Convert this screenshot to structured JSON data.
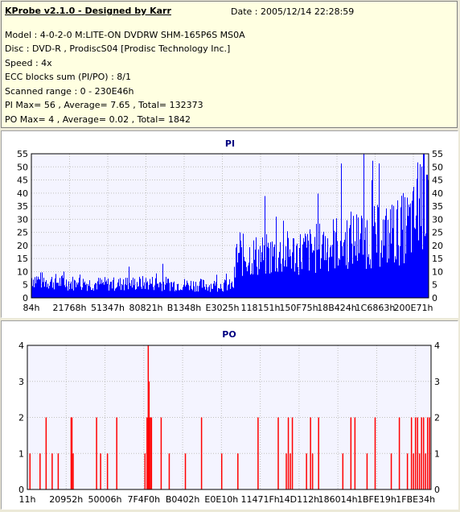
{
  "header": {
    "title": "KProbe v2.1.0 - Designed by Karr",
    "date": "Date : 2005/12/14 22:28:59",
    "lines": [
      "Model : 4-0-2-0 M:LITE-ON DVDRW SHM-165P6S MS0A",
      "Disc : DVD-R , ProdiscS04   [Prodisc Technology Inc.]",
      "Speed : 4x",
      "ECC blocks sum (PI/PO) : 8/1",
      "Scanned range : 0 - 230E46h",
      "PI Max= 56 , Average= 7.65 , Total= 132373",
      "PO Max= 4 , Average= 0.02 , Total= 1842"
    ]
  },
  "colors": {
    "pi_bar": "#0000ff",
    "po_bar": "#ff0000",
    "grid": "#c0c0c0",
    "plot_bg": "#f4f4ff",
    "header_bg": "#ffffe1",
    "chart_title": "#000080"
  },
  "chart_data": [
    {
      "type": "bar",
      "title": "PI",
      "xlabel": "",
      "ylabel": "",
      "ylim": [
        0,
        55
      ],
      "yticks": [
        0,
        5,
        10,
        15,
        20,
        25,
        30,
        35,
        40,
        45,
        50,
        55
      ],
      "x_tick_labels": [
        "84h",
        "21768h",
        "51347h",
        "80821h",
        "B1348h",
        "E3025h",
        "118151h",
        "150F75h",
        "18B424h",
        "1C6863h",
        "200E71h"
      ],
      "grid": true,
      "profile": [
        {
          "x": 0.0,
          "y": 8
        },
        {
          "x": 0.02,
          "y": 7
        },
        {
          "x": 0.1,
          "y": 6
        },
        {
          "x": 0.2,
          "y": 5.5
        },
        {
          "x": 0.3,
          "y": 6
        },
        {
          "x": 0.36,
          "y": 5.5
        },
        {
          "x": 0.45,
          "y": 5
        },
        {
          "x": 0.51,
          "y": 5
        },
        {
          "x": 0.515,
          "y": 17
        },
        {
          "x": 0.6,
          "y": 17
        },
        {
          "x": 0.7,
          "y": 19
        },
        {
          "x": 0.76,
          "y": 22
        },
        {
          "x": 0.82,
          "y": 24
        },
        {
          "x": 0.9,
          "y": 25
        },
        {
          "x": 0.96,
          "y": 30
        },
        {
          "x": 0.985,
          "y": 40
        },
        {
          "x": 1.0,
          "y": 47
        }
      ],
      "spikes": [
        {
          "x": 0.33,
          "y": 13
        },
        {
          "x": 0.525,
          "y": 25
        },
        {
          "x": 0.72,
          "y": 29
        },
        {
          "x": 0.78,
          "y": 30
        },
        {
          "x": 0.93,
          "y": 32
        },
        {
          "x": 0.978,
          "y": 51
        },
        {
          "x": 0.986,
          "y": 56
        },
        {
          "x": 0.995,
          "y": 47
        }
      ]
    },
    {
      "type": "bar",
      "title": "PO",
      "xlabel": "",
      "ylabel": "",
      "ylim": [
        0,
        4
      ],
      "yticks": [
        0,
        1,
        2,
        3,
        4
      ],
      "x_tick_labels": [
        "11h",
        "20952h",
        "50006h",
        "7F4F0h",
        "B0402h",
        "E0E10h",
        "11471Fh",
        "14D112h",
        "186014h",
        "1BFE19h",
        "1FBE34h"
      ],
      "grid": true,
      "bars": [
        {
          "x": 0.005,
          "y": 1
        },
        {
          "x": 0.03,
          "y": 1
        },
        {
          "x": 0.045,
          "y": 2
        },
        {
          "x": 0.06,
          "y": 1
        },
        {
          "x": 0.075,
          "y": 1
        },
        {
          "x": 0.107,
          "y": 2
        },
        {
          "x": 0.109,
          "y": 2
        },
        {
          "x": 0.112,
          "y": 1
        },
        {
          "x": 0.17,
          "y": 2
        },
        {
          "x": 0.18,
          "y": 1
        },
        {
          "x": 0.197,
          "y": 1
        },
        {
          "x": 0.22,
          "y": 2
        },
        {
          "x": 0.29,
          "y": 1
        },
        {
          "x": 0.295,
          "y": 2
        },
        {
          "x": 0.298,
          "y": 4
        },
        {
          "x": 0.3,
          "y": 3
        },
        {
          "x": 0.303,
          "y": 2
        },
        {
          "x": 0.306,
          "y": 2
        },
        {
          "x": 0.33,
          "y": 2
        },
        {
          "x": 0.35,
          "y": 1
        },
        {
          "x": 0.39,
          "y": 1
        },
        {
          "x": 0.43,
          "y": 2
        },
        {
          "x": 0.48,
          "y": 1
        },
        {
          "x": 0.52,
          "y": 1
        },
        {
          "x": 0.57,
          "y": 2
        },
        {
          "x": 0.62,
          "y": 2
        },
        {
          "x": 0.64,
          "y": 1
        },
        {
          "x": 0.645,
          "y": 2
        },
        {
          "x": 0.65,
          "y": 1
        },
        {
          "x": 0.655,
          "y": 2
        },
        {
          "x": 0.69,
          "y": 1
        },
        {
          "x": 0.7,
          "y": 2
        },
        {
          "x": 0.705,
          "y": 1
        },
        {
          "x": 0.72,
          "y": 2
        },
        {
          "x": 0.78,
          "y": 1
        },
        {
          "x": 0.8,
          "y": 2
        },
        {
          "x": 0.81,
          "y": 2
        },
        {
          "x": 0.84,
          "y": 1
        },
        {
          "x": 0.86,
          "y": 2
        },
        {
          "x": 0.9,
          "y": 1
        },
        {
          "x": 0.92,
          "y": 2
        },
        {
          "x": 0.94,
          "y": 1
        },
        {
          "x": 0.95,
          "y": 2
        },
        {
          "x": 0.955,
          "y": 1
        },
        {
          "x": 0.96,
          "y": 2
        },
        {
          "x": 0.965,
          "y": 2
        },
        {
          "x": 0.97,
          "y": 1
        },
        {
          "x": 0.975,
          "y": 2
        },
        {
          "x": 0.98,
          "y": 2
        },
        {
          "x": 0.985,
          "y": 1
        },
        {
          "x": 0.99,
          "y": 2
        },
        {
          "x": 0.995,
          "y": 2
        }
      ]
    }
  ]
}
